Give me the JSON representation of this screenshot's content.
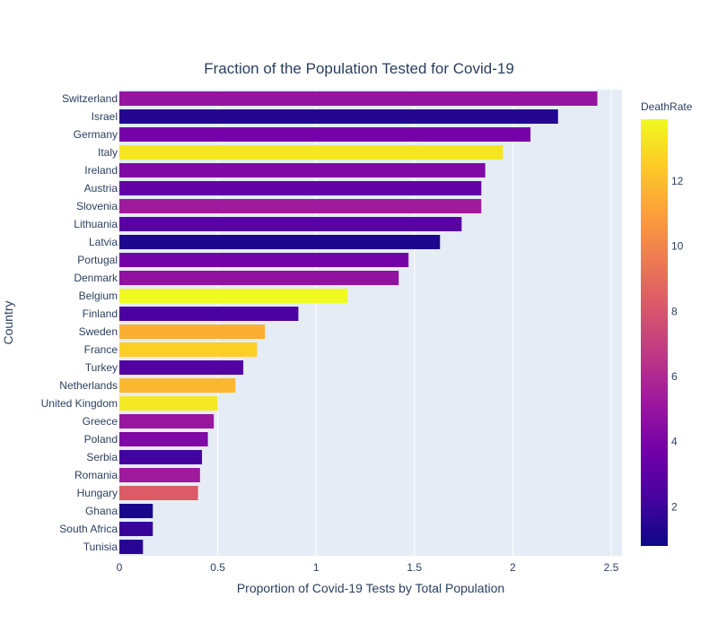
{
  "chart_data": {
    "type": "bar",
    "orientation": "horizontal",
    "title": "Fraction of the Population Tested for Covid-19",
    "xlabel": "Proportion of Covid-19 Tests by Total Population",
    "ylabel": "Country",
    "xlim": [
      0,
      2.555
    ],
    "xticks": [
      0,
      0.5,
      1,
      1.5,
      2,
      2.5
    ],
    "xtick_labels": [
      "0",
      "0.5",
      "1",
      "1.5",
      "2",
      "2.5"
    ],
    "grid": true,
    "categories": [
      "Switzerland",
      "Israel",
      "Germany",
      "Italy",
      "Ireland",
      "Austria",
      "Slovenia",
      "Lithuania",
      "Latvia",
      "Portugal",
      "Denmark",
      "Belgium",
      "Finland",
      "Sweden",
      "France",
      "Turkey",
      "Netherlands",
      "United Kingdom",
      "Greece",
      "Poland",
      "Serbia",
      "Romania",
      "Hungary",
      "Ghana",
      "South Africa",
      "Tunisia"
    ],
    "values": [
      2.43,
      2.23,
      2.09,
      1.95,
      1.86,
      1.84,
      1.84,
      1.74,
      1.63,
      1.47,
      1.42,
      1.16,
      0.91,
      0.74,
      0.7,
      0.63,
      0.59,
      0.5,
      0.48,
      0.45,
      0.42,
      0.41,
      0.4,
      0.17,
      0.17,
      0.12
    ],
    "color_values": [
      4.9,
      1.4,
      3.8,
      13.3,
      4.2,
      3.2,
      5.3,
      2.9,
      1.2,
      3.8,
      4.8,
      13.9,
      2.4,
      11.5,
      12.6,
      2.7,
      11.8,
      13.4,
      5.1,
      4.2,
      2.2,
      5.3,
      8.3,
      1.1,
      1.9,
      1.5
    ],
    "colorbar": {
      "title": "DeathRate",
      "min": 0.8,
      "max": 13.9,
      "ticks": [
        2,
        4,
        6,
        8,
        10,
        12
      ],
      "tick_labels": [
        "2",
        "4",
        "6",
        "8",
        "10",
        "12"
      ],
      "colorscale": [
        "#0d0887",
        "#46039f",
        "#7201a8",
        "#9c179e",
        "#bd3786",
        "#d8576b",
        "#ed7953",
        "#fb9f3a",
        "#fdca26",
        "#f0f921"
      ]
    }
  }
}
